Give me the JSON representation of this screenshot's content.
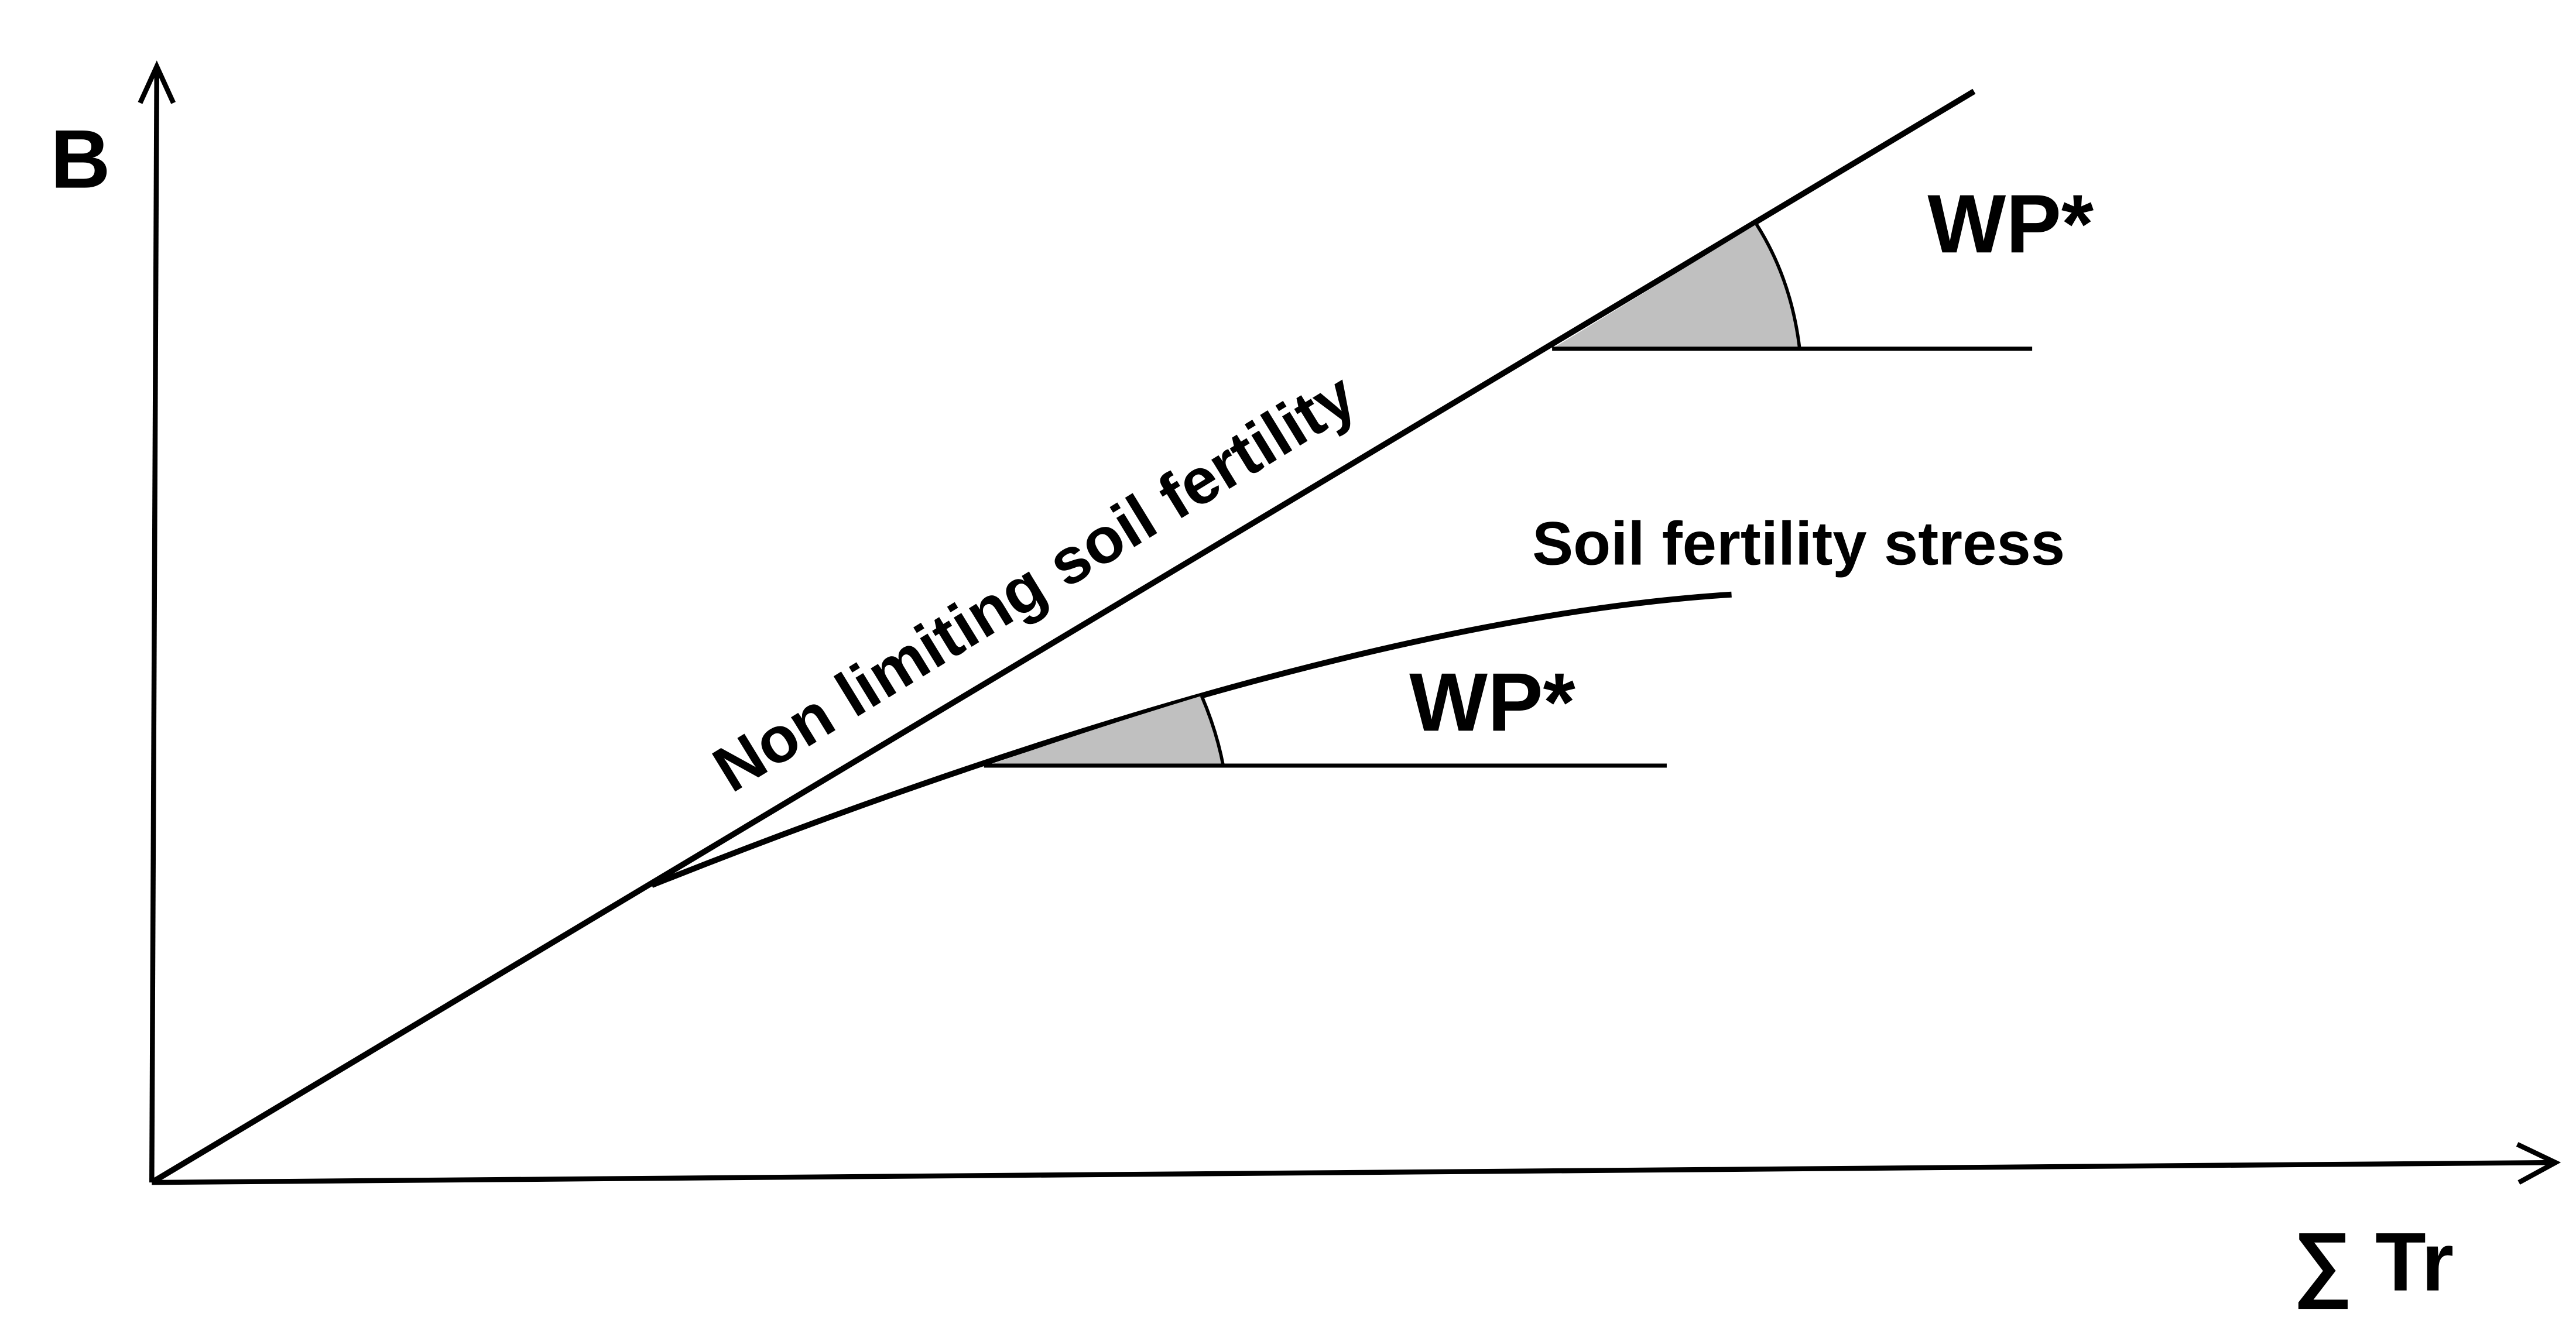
{
  "diagram": {
    "y_axis_label": "B",
    "x_axis_label": "∑ Tr",
    "upper_line_label": "Non limiting soil fertility",
    "lower_curve_label": "Soil fertility stress",
    "upper_slope_label": "WP*",
    "lower_slope_label": "WP*"
  },
  "colors": {
    "line": "#000000",
    "angle_fill": "#c0c0c0",
    "background": "#ffffff"
  }
}
